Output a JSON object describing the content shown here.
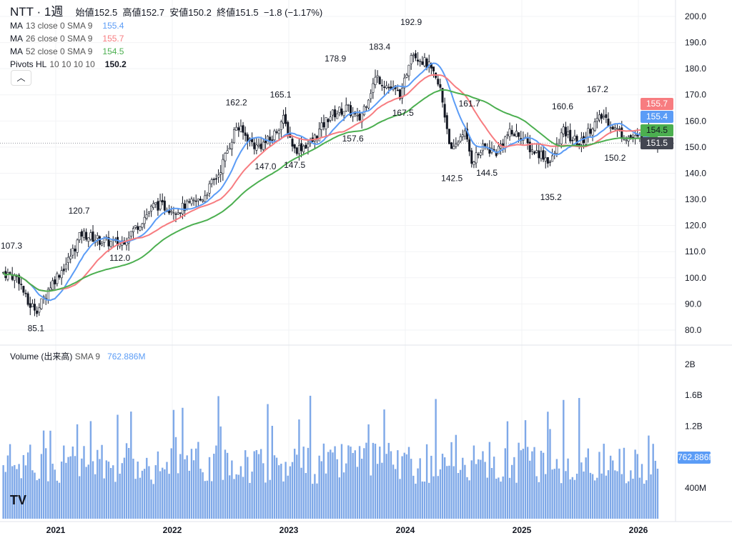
{
  "header": {
    "symbol": "NTT",
    "interval": "1週",
    "open_label": "始値",
    "open": "152.5",
    "high_label": "高値",
    "high": "152.7",
    "low_label": "安値",
    "low": "150.2",
    "close_label": "終値",
    "close": "151.5",
    "change": "−1.8 (−1.17%)"
  },
  "indicators": [
    {
      "name": "MA",
      "params": "13 close 0 SMA 9",
      "value": "155.4",
      "color": "#5b9cf6"
    },
    {
      "name": "MA",
      "params": "26 close 0 SMA 9",
      "value": "155.7",
      "color": "#f77c80"
    },
    {
      "name": "MA",
      "params": "52 close 0 SMA 9",
      "value": "154.5",
      "color": "#4caf50"
    },
    {
      "name": "Pivots HL",
      "params": "10 10 10 10",
      "value": "150.2",
      "color": "#131722"
    }
  ],
  "collapse_icon": "chevron-up",
  "volume": {
    "name": "Volume (出来高)",
    "params": "SMA 9",
    "value": "762.886M",
    "tag": "762.886M"
  },
  "price_tags": [
    {
      "text": "155.7",
      "color": "#f77c80"
    },
    {
      "text": "155.4",
      "color": "#5b9cf6"
    },
    {
      "text": "154.5",
      "color": "#4caf50"
    },
    {
      "text": "151.5",
      "color": "#434651"
    }
  ],
  "chart_data": {
    "type": "candlestick",
    "price_axis": {
      "min": 80,
      "max": 200,
      "ticks": [
        "200.0",
        "190.0",
        "180.0",
        "170.0",
        "160.0",
        "150.0",
        "140.0",
        "130.0",
        "120.0",
        "110.0",
        "100.0",
        "90.0",
        "80.0"
      ]
    },
    "volume_axis": {
      "ticks": [
        "2B",
        "1.6B",
        "1.2B",
        "400M"
      ]
    },
    "x_ticks": [
      "2021",
      "2022",
      "2023",
      "2024",
      "2025",
      "2026"
    ],
    "pivots": [
      {
        "t": 2020.55,
        "label": "107.3",
        "type": "high"
      },
      {
        "t": 2020.83,
        "label": "85.1",
        "type": "low"
      },
      {
        "t": 2021.2,
        "label": "120.7",
        "type": "high"
      },
      {
        "t": 2021.55,
        "label": "112.0",
        "type": "low"
      },
      {
        "t": 2022.55,
        "label": "162.2",
        "type": "high"
      },
      {
        "t": 2022.8,
        "label": "147.0",
        "type": "low"
      },
      {
        "t": 2022.93,
        "label": "165.1",
        "type": "high"
      },
      {
        "t": 2023.05,
        "label": "147.5",
        "type": "low"
      },
      {
        "t": 2023.4,
        "label": "178.9",
        "type": "high"
      },
      {
        "t": 2023.55,
        "label": "157.6",
        "type": "low"
      },
      {
        "t": 2023.78,
        "label": "183.4",
        "type": "high"
      },
      {
        "t": 2023.98,
        "label": "167.5",
        "type": "low"
      },
      {
        "t": 2024.05,
        "label": "192.9",
        "type": "high"
      },
      {
        "t": 2024.4,
        "label": "142.5",
        "type": "low"
      },
      {
        "t": 2024.55,
        "label": "161.7",
        "type": "high"
      },
      {
        "t": 2024.7,
        "label": "144.5",
        "type": "low"
      },
      {
        "t": 2025.25,
        "label": "135.2",
        "type": "low"
      },
      {
        "t": 2025.35,
        "label": "160.6",
        "type": "high"
      },
      {
        "t": 2025.65,
        "label": "167.2",
        "type": "high"
      },
      {
        "t": 2025.8,
        "label": "150.2",
        "type": "low"
      }
    ],
    "price_path": [
      [
        2020.55,
        102
      ],
      [
        2020.68,
        100
      ],
      [
        2020.76,
        90
      ],
      [
        2020.85,
        88
      ],
      [
        2020.95,
        97
      ],
      [
        2021.1,
        106
      ],
      [
        2021.22,
        117
      ],
      [
        2021.4,
        114
      ],
      [
        2021.55,
        113
      ],
      [
        2021.7,
        120
      ],
      [
        2021.85,
        128
      ],
      [
        2022.05,
        126
      ],
      [
        2022.25,
        130
      ],
      [
        2022.4,
        140
      ],
      [
        2022.55,
        158
      ],
      [
        2022.72,
        150
      ],
      [
        2022.85,
        153
      ],
      [
        2022.95,
        161
      ],
      [
        2023.05,
        149
      ],
      [
        2023.2,
        152
      ],
      [
        2023.35,
        162
      ],
      [
        2023.5,
        165
      ],
      [
        2023.6,
        160
      ],
      [
        2023.75,
        177
      ],
      [
        2023.88,
        172
      ],
      [
        2023.97,
        170
      ],
      [
        2024.05,
        187
      ],
      [
        2024.2,
        181
      ],
      [
        2024.3,
        172
      ],
      [
        2024.4,
        147
      ],
      [
        2024.5,
        157
      ],
      [
        2024.57,
        145
      ],
      [
        2024.68,
        150
      ],
      [
        2024.78,
        148
      ],
      [
        2024.88,
        155
      ],
      [
        2024.98,
        155
      ],
      [
        2025.08,
        149
      ],
      [
        2025.18,
        147
      ],
      [
        2025.25,
        144
      ],
      [
        2025.35,
        156
      ],
      [
        2025.5,
        151
      ],
      [
        2025.6,
        158
      ],
      [
        2025.7,
        162
      ],
      [
        2025.8,
        157
      ],
      [
        2025.9,
        154
      ],
      [
        2026.0,
        153
      ],
      [
        2026.1,
        157
      ],
      [
        2026.17,
        151.5
      ]
    ]
  }
}
